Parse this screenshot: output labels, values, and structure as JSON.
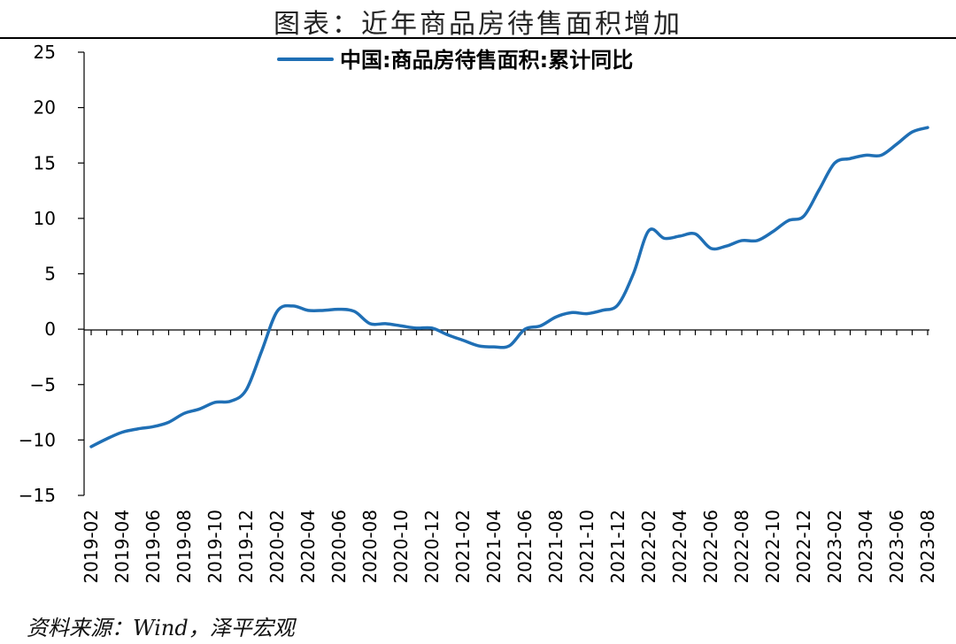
{
  "chart_data": {
    "type": "line",
    "title": "图表：近年商品房待售面积增加",
    "source": "资料来源：Wind，泽平宏观",
    "xlabel": "",
    "ylabel": "",
    "ylim": [
      -15,
      25
    ],
    "yticks": [
      25,
      20,
      15,
      10,
      5,
      0,
      -5,
      -10,
      -15
    ],
    "ytick_labels": [
      "25",
      "20",
      "15",
      "10",
      "5",
      "0",
      "−5",
      "−10",
      "−15"
    ],
    "grid": false,
    "legend_position": "top-center",
    "color": "#1F6FB5",
    "x_tick_labels": [
      "2019-02",
      "2019-04",
      "2019-06",
      "2019-08",
      "2019-10",
      "2019-12",
      "2020-02",
      "2020-04",
      "2020-06",
      "2020-08",
      "2020-10",
      "2020-12",
      "2021-02",
      "2021-04",
      "2021-06",
      "2021-08",
      "2021-10",
      "2021-12",
      "2022-02",
      "2022-04",
      "2022-06",
      "2022-08",
      "2022-10",
      "2022-12",
      "2023-02",
      "2023-04",
      "2023-06",
      "2023-08"
    ],
    "x": [
      "2019-02",
      "2019-03",
      "2019-04",
      "2019-05",
      "2019-06",
      "2019-07",
      "2019-08",
      "2019-09",
      "2019-10",
      "2019-11",
      "2019-12",
      "2020-01",
      "2020-02",
      "2020-03",
      "2020-04",
      "2020-05",
      "2020-06",
      "2020-07",
      "2020-08",
      "2020-09",
      "2020-10",
      "2020-11",
      "2020-12",
      "2021-01",
      "2021-02",
      "2021-03",
      "2021-04",
      "2021-05",
      "2021-06",
      "2021-07",
      "2021-08",
      "2021-09",
      "2021-10",
      "2021-11",
      "2021-12",
      "2022-01",
      "2022-02",
      "2022-03",
      "2022-04",
      "2022-05",
      "2022-06",
      "2022-07",
      "2022-08",
      "2022-09",
      "2022-10",
      "2022-11",
      "2022-12",
      "2023-01",
      "2023-02",
      "2023-03",
      "2023-04",
      "2023-05",
      "2023-06",
      "2023-07",
      "2023-08"
    ],
    "series": [
      {
        "name": "中国:商品房待售面积:累计同比",
        "values": [
          -10.6,
          -9.9,
          -9.3,
          -9.0,
          -8.8,
          -8.4,
          -7.6,
          -7.2,
          -6.6,
          -6.5,
          -5.5,
          -2.0,
          1.6,
          2.1,
          1.7,
          1.7,
          1.8,
          1.6,
          0.5,
          0.5,
          0.3,
          0.1,
          0.1,
          -0.5,
          -1.0,
          -1.5,
          -1.6,
          -1.5,
          0.0,
          0.3,
          1.1,
          1.5,
          1.4,
          1.7,
          2.2,
          5.0,
          8.9,
          8.2,
          8.4,
          8.6,
          7.3,
          7.5,
          8.0,
          8.0,
          8.8,
          9.8,
          10.2,
          12.6,
          15.0,
          15.4,
          15.7,
          15.7,
          16.7,
          17.8,
          18.2
        ]
      }
    ]
  }
}
